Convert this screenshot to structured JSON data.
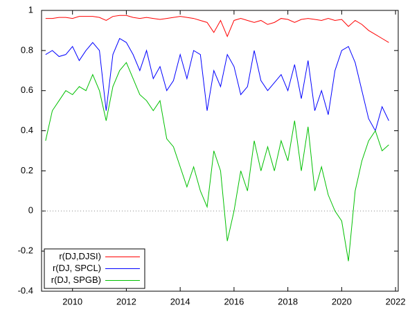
{
  "chart_data": {
    "type": "line",
    "x": [
      2009.0,
      2009.25,
      2009.5,
      2009.75,
      2010.0,
      2010.25,
      2010.5,
      2010.75,
      2011.0,
      2011.25,
      2011.5,
      2011.75,
      2012.0,
      2012.25,
      2012.5,
      2012.75,
      2013.0,
      2013.25,
      2013.5,
      2013.75,
      2014.0,
      2014.25,
      2014.5,
      2014.75,
      2015.0,
      2015.25,
      2015.5,
      2015.75,
      2016.0,
      2016.25,
      2016.5,
      2016.75,
      2017.0,
      2017.25,
      2017.5,
      2017.75,
      2018.0,
      2018.25,
      2018.5,
      2018.75,
      2019.0,
      2019.25,
      2019.5,
      2019.75,
      2020.0,
      2020.25,
      2020.5,
      2020.75,
      2021.0,
      2021.25,
      2021.5,
      2021.75
    ],
    "series": [
      {
        "name": "r(DJ,DJSI)",
        "color": "#ff0000",
        "values": [
          0.96,
          0.96,
          0.965,
          0.965,
          0.96,
          0.97,
          0.97,
          0.97,
          0.965,
          0.95,
          0.97,
          0.975,
          0.975,
          0.965,
          0.96,
          0.965,
          0.96,
          0.955,
          0.96,
          0.965,
          0.97,
          0.965,
          0.96,
          0.95,
          0.94,
          0.89,
          0.95,
          0.87,
          0.95,
          0.96,
          0.95,
          0.94,
          0.95,
          0.93,
          0.94,
          0.96,
          0.955,
          0.94,
          0.955,
          0.96,
          0.955,
          0.95,
          0.96,
          0.95,
          0.955,
          0.92,
          0.95,
          0.93,
          0.9,
          0.88,
          0.86,
          0.84
        ]
      },
      {
        "name": "r(DJ, SPCL)",
        "color": "#0000ff",
        "values": [
          0.78,
          0.8,
          0.77,
          0.78,
          0.82,
          0.75,
          0.8,
          0.84,
          0.8,
          0.5,
          0.78,
          0.86,
          0.84,
          0.78,
          0.7,
          0.8,
          0.66,
          0.72,
          0.6,
          0.65,
          0.78,
          0.66,
          0.8,
          0.78,
          0.5,
          0.7,
          0.62,
          0.78,
          0.72,
          0.58,
          0.62,
          0.8,
          0.65,
          0.6,
          0.64,
          0.68,
          0.6,
          0.73,
          0.56,
          0.75,
          0.5,
          0.6,
          0.48,
          0.7,
          0.8,
          0.82,
          0.74,
          0.6,
          0.46,
          0.4,
          0.52,
          0.45
        ]
      },
      {
        "name": "r(DJ, SPGB)",
        "color": "#00c000",
        "values": [
          0.35,
          0.5,
          0.55,
          0.6,
          0.58,
          0.62,
          0.6,
          0.68,
          0.6,
          0.45,
          0.62,
          0.7,
          0.74,
          0.66,
          0.58,
          0.55,
          0.5,
          0.55,
          0.36,
          0.32,
          0.22,
          0.12,
          0.22,
          0.1,
          0.02,
          0.3,
          0.2,
          -0.15,
          0.0,
          0.2,
          0.1,
          0.35,
          0.2,
          0.32,
          0.2,
          0.35,
          0.25,
          0.45,
          0.2,
          0.42,
          0.1,
          0.22,
          0.08,
          0.0,
          -0.05,
          -0.25,
          0.1,
          0.25,
          0.35,
          0.4,
          0.3,
          0.33
        ]
      }
    ],
    "xlim": [
      2008.85,
      2022.1
    ],
    "xticks": [
      2010,
      2012,
      2014,
      2016,
      2018,
      2020,
      2022
    ],
    "ylim": [
      -0.4,
      1
    ],
    "yticks": [
      -0.4,
      -0.2,
      0,
      0.2,
      0.4,
      0.6,
      0.8,
      1
    ],
    "grid": false,
    "zero_line": true,
    "legend": "lower left"
  }
}
